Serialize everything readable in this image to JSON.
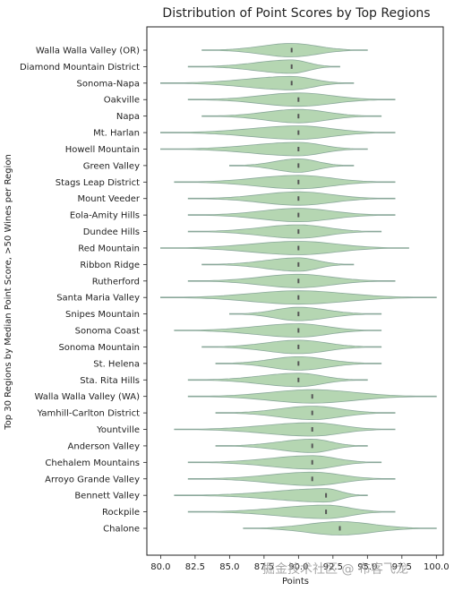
{
  "chart_data": {
    "type": "violin",
    "orientation": "horizontal",
    "title": "Distribution of Point Scores by Top Regions",
    "xlabel": "Points",
    "ylabel": "Top 30 Regions by Median Point Score, >50 Wines per Region",
    "xlim": [
      79.0,
      100.5
    ],
    "xticks": [
      "80.0",
      "82.5",
      "85.0",
      "87.5",
      "90.0",
      "92.5",
      "95.0",
      "97.5",
      "100.0"
    ],
    "xtick_values": [
      80,
      82.5,
      85,
      87.5,
      90,
      92.5,
      95,
      97.5,
      100
    ],
    "grid": false,
    "color": "#b5d6b2",
    "regions": [
      {
        "name": "Walla Walla Valley (OR)",
        "min": 83,
        "max": 95,
        "median": 89.5
      },
      {
        "name": "Diamond Mountain District",
        "min": 82,
        "max": 93,
        "median": 89.5
      },
      {
        "name": "Sonoma-Napa",
        "min": 80,
        "max": 94,
        "median": 89.5
      },
      {
        "name": "Oakville",
        "min": 82,
        "max": 97,
        "median": 90
      },
      {
        "name": "Napa",
        "min": 83,
        "max": 96,
        "median": 90
      },
      {
        "name": "Mt. Harlan",
        "min": 80,
        "max": 97,
        "median": 90
      },
      {
        "name": "Howell Mountain",
        "min": 80,
        "max": 95,
        "median": 90
      },
      {
        "name": "Green Valley",
        "min": 85,
        "max": 94,
        "median": 90
      },
      {
        "name": "Stags Leap District",
        "min": 81,
        "max": 97,
        "median": 90
      },
      {
        "name": "Mount Veeder",
        "min": 82,
        "max": 97,
        "median": 90
      },
      {
        "name": "Eola-Amity Hills",
        "min": 82,
        "max": 97,
        "median": 90
      },
      {
        "name": "Dundee Hills",
        "min": 82,
        "max": 96,
        "median": 90
      },
      {
        "name": "Red Mountain",
        "min": 80,
        "max": 98,
        "median": 90
      },
      {
        "name": "Ribbon Ridge",
        "min": 83,
        "max": 94,
        "median": 90
      },
      {
        "name": "Rutherford",
        "min": 82,
        "max": 97,
        "median": 90
      },
      {
        "name": "Santa Maria Valley",
        "min": 80,
        "max": 100,
        "median": 90
      },
      {
        "name": "Snipes Mountain",
        "min": 85,
        "max": 96,
        "median": 90
      },
      {
        "name": "Sonoma Coast",
        "min": 81,
        "max": 96,
        "median": 90
      },
      {
        "name": "Sonoma Mountain",
        "min": 83,
        "max": 96,
        "median": 90
      },
      {
        "name": "St. Helena",
        "min": 84,
        "max": 96,
        "median": 90
      },
      {
        "name": "Sta. Rita Hills",
        "min": 82,
        "max": 95,
        "median": 90
      },
      {
        "name": "Walla Walla Valley (WA)",
        "min": 82,
        "max": 100,
        "median": 91
      },
      {
        "name": "Yamhill-Carlton District",
        "min": 84,
        "max": 97,
        "median": 91
      },
      {
        "name": "Yountville",
        "min": 81,
        "max": 97,
        "median": 91
      },
      {
        "name": "Anderson Valley",
        "min": 84,
        "max": 95,
        "median": 91
      },
      {
        "name": "Chehalem Mountains",
        "min": 82,
        "max": 96,
        "median": 91
      },
      {
        "name": "Arroyo Grande Valley",
        "min": 82,
        "max": 97,
        "median": 91
      },
      {
        "name": "Bennett Valley",
        "min": 81,
        "max": 95,
        "median": 92
      },
      {
        "name": "Rockpile",
        "min": 82,
        "max": 97,
        "median": 92
      },
      {
        "name": "Chalone",
        "min": 86,
        "max": 100,
        "median": 93
      }
    ]
  },
  "watermark": "掘金技术社区 @ 布客飞龙"
}
